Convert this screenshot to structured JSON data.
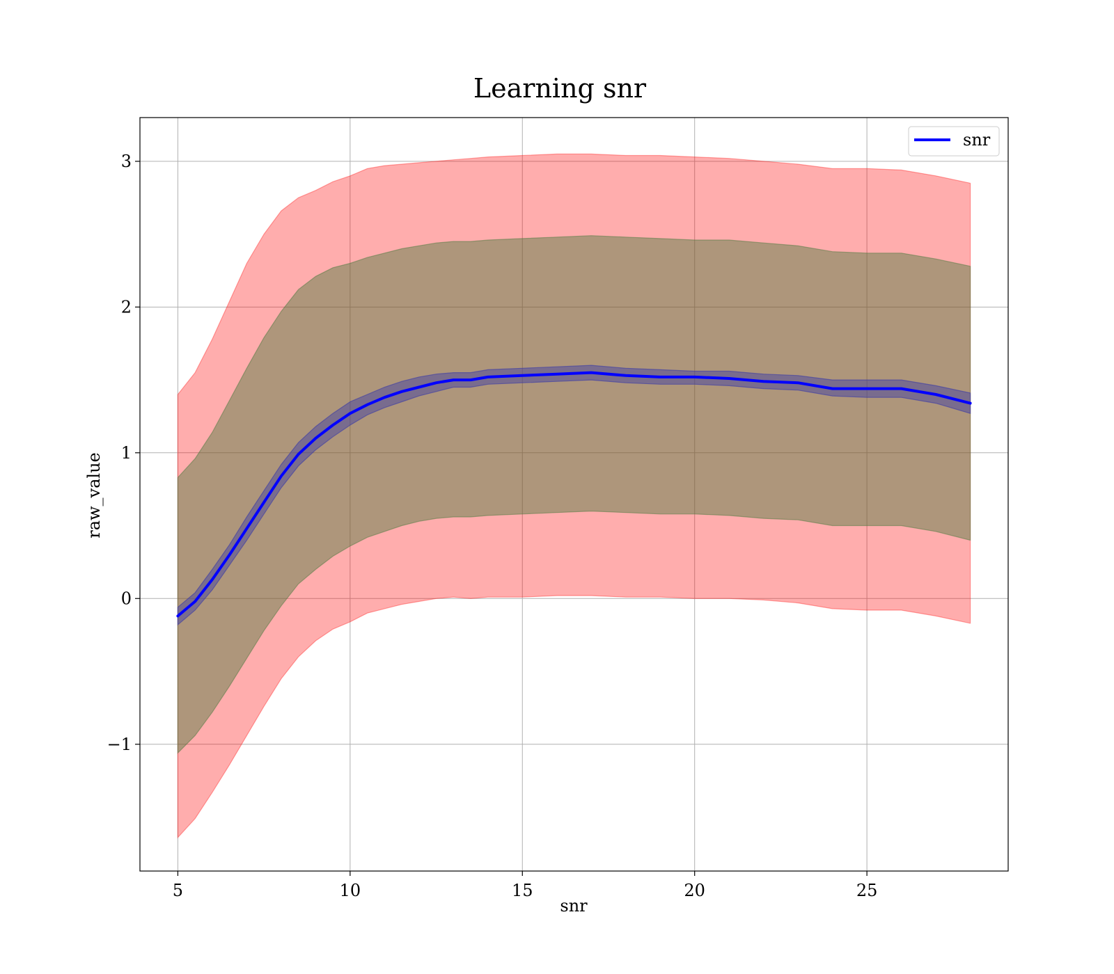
{
  "chart_data": {
    "type": "line",
    "title": "Learning snr",
    "xlabel": "snr",
    "ylabel": "raw_value",
    "xlim": [
      3.9,
      29.1
    ],
    "ylim": [
      -1.87,
      3.3
    ],
    "xticks": [
      5,
      10,
      15,
      20,
      25
    ],
    "yticks": [
      -1,
      0,
      1,
      2,
      3
    ],
    "ytick_labels": [
      "−1",
      "0",
      "1",
      "2",
      "3"
    ],
    "grid": true,
    "legend": {
      "placement": "top-right",
      "entries": [
        "snr"
      ]
    },
    "colors": {
      "line": "#0000ff",
      "band_outer": "#ff0000",
      "band_middle": "#4c7a3f",
      "band_inner": "#3a3aa6"
    },
    "series": [
      {
        "name": "snr",
        "x": [
          5,
          5.5,
          6,
          6.5,
          7,
          7.5,
          8,
          8.5,
          9,
          9.5,
          10,
          10.5,
          11,
          11.5,
          12,
          12.5,
          13,
          13.5,
          14,
          15,
          16,
          17,
          18,
          19,
          20,
          21,
          22,
          23,
          24,
          25,
          26,
          27,
          28
        ],
        "y": [
          -0.12,
          -0.02,
          0.13,
          0.3,
          0.48,
          0.66,
          0.84,
          0.99,
          1.1,
          1.19,
          1.27,
          1.33,
          1.38,
          1.42,
          1.45,
          1.48,
          1.5,
          1.5,
          1.52,
          1.53,
          1.54,
          1.55,
          1.53,
          1.52,
          1.52,
          1.51,
          1.49,
          1.48,
          1.44,
          1.44,
          1.44,
          1.4,
          1.34
        ]
      }
    ],
    "bands": [
      {
        "role": "outer",
        "upper": [
          1.4,
          1.55,
          1.78,
          2.04,
          2.3,
          2.5,
          2.66,
          2.75,
          2.8,
          2.86,
          2.9,
          2.95,
          2.97,
          2.98,
          2.99,
          3.0,
          3.01,
          3.02,
          3.03,
          3.04,
          3.05,
          3.05,
          3.04,
          3.04,
          3.03,
          3.02,
          3.0,
          2.98,
          2.95,
          2.95,
          2.94,
          2.9,
          2.85
        ],
        "lower": [
          -1.64,
          -1.51,
          -1.33,
          -1.14,
          -0.94,
          -0.74,
          -0.55,
          -0.4,
          -0.29,
          -0.21,
          -0.16,
          -0.1,
          -0.07,
          -0.04,
          -0.02,
          0.0,
          0.01,
          0.0,
          0.01,
          0.01,
          0.02,
          0.02,
          0.01,
          0.01,
          0.0,
          0.0,
          -0.01,
          -0.03,
          -0.07,
          -0.08,
          -0.08,
          -0.12,
          -0.17
        ]
      },
      {
        "role": "middle",
        "upper": [
          0.83,
          0.96,
          1.14,
          1.36,
          1.58,
          1.79,
          1.97,
          2.12,
          2.21,
          2.27,
          2.3,
          2.34,
          2.37,
          2.4,
          2.42,
          2.44,
          2.45,
          2.45,
          2.46,
          2.47,
          2.48,
          2.49,
          2.48,
          2.47,
          2.46,
          2.46,
          2.44,
          2.42,
          2.38,
          2.37,
          2.37,
          2.33,
          2.28
        ],
        "lower": [
          -1.06,
          -0.94,
          -0.78,
          -0.6,
          -0.41,
          -0.22,
          -0.05,
          0.1,
          0.2,
          0.29,
          0.36,
          0.42,
          0.46,
          0.5,
          0.53,
          0.55,
          0.56,
          0.56,
          0.57,
          0.58,
          0.59,
          0.6,
          0.59,
          0.58,
          0.58,
          0.57,
          0.55,
          0.54,
          0.5,
          0.5,
          0.5,
          0.46,
          0.4
        ]
      },
      {
        "role": "inner",
        "upper": [
          -0.06,
          0.04,
          0.2,
          0.37,
          0.56,
          0.74,
          0.92,
          1.07,
          1.18,
          1.27,
          1.35,
          1.4,
          1.45,
          1.49,
          1.52,
          1.54,
          1.55,
          1.55,
          1.57,
          1.58,
          1.59,
          1.6,
          1.58,
          1.57,
          1.56,
          1.56,
          1.54,
          1.53,
          1.5,
          1.5,
          1.5,
          1.46,
          1.41
        ],
        "lower": [
          -0.18,
          -0.08,
          0.06,
          0.23,
          0.4,
          0.58,
          0.76,
          0.91,
          1.02,
          1.11,
          1.19,
          1.26,
          1.31,
          1.35,
          1.39,
          1.42,
          1.45,
          1.45,
          1.47,
          1.48,
          1.49,
          1.5,
          1.48,
          1.47,
          1.47,
          1.46,
          1.44,
          1.43,
          1.39,
          1.38,
          1.38,
          1.34,
          1.27
        ]
      }
    ]
  }
}
